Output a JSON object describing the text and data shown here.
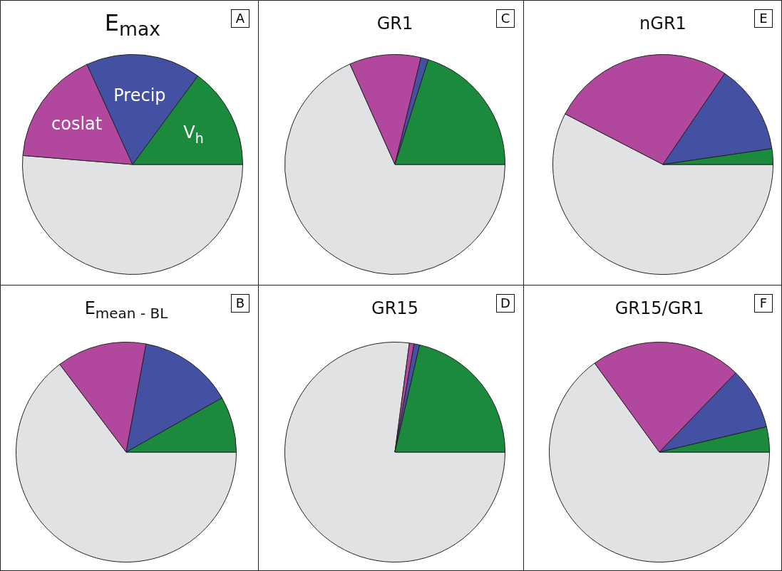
{
  "chart_data": [
    {
      "type": "pie",
      "title": "E$_{max}$",
      "categories": [
        null,
        "coslat",
        "Precip",
        "V$_{h}$"
      ],
      "values": [
        51.3,
        16.9,
        16.9,
        14.9
      ],
      "colors": [
        "#e1e2e3",
        "#b2489e",
        "#4451a3",
        "#1b8a3d"
      ],
      "annotations": [
        "A"
      ]
    },
    {
      "type": "pie",
      "title": "GR1",
      "categories": [
        null,
        null,
        null,
        null
      ],
      "values": [
        68.3,
        10.5,
        1.1,
        20.1
      ],
      "colors": [
        "#e1e2e3",
        "#b2489e",
        "#4451a3",
        "#1b8a3d"
      ],
      "annotations": [
        "C"
      ]
    },
    {
      "type": "pie",
      "title": "nGR1",
      "categories": [
        null,
        null,
        null,
        null
      ],
      "values": [
        57.6,
        26.9,
        13.2,
        2.3
      ],
      "colors": [
        "#e1e2e3",
        "#b2489e",
        "#4451a3",
        "#1b8a3d"
      ],
      "annotations": [
        "E"
      ]
    },
    {
      "type": "pie",
      "title": "E$_{mean - BL}$",
      "categories": [
        null,
        null,
        null,
        null
      ],
      "values": [
        64.7,
        13.2,
        13.9,
        8.2
      ],
      "colors": [
        "#e1e2e3",
        "#b2489e",
        "#4451a3",
        "#1b8a3d"
      ],
      "annotations": [
        "B"
      ]
    },
    {
      "type": "pie",
      "title": "GR15",
      "categories": [
        null,
        null,
        null,
        null
      ],
      "values": [
        77.1,
        0.7,
        0.8,
        21.4
      ],
      "colors": [
        "#e1e2e3",
        "#b2489e",
        "#4451a3",
        "#1b8a3d"
      ],
      "annotations": [
        "D"
      ]
    },
    {
      "type": "pie",
      "title": "GR15/GR1",
      "categories": [
        null,
        null,
        null,
        null
      ],
      "values": [
        65.0,
        22.2,
        9.1,
        3.7
      ],
      "colors": [
        "#e1e2e3",
        "#b2489e",
        "#4451a3",
        "#1b8a3d"
      ],
      "annotations": [
        "F"
      ]
    }
  ]
}
